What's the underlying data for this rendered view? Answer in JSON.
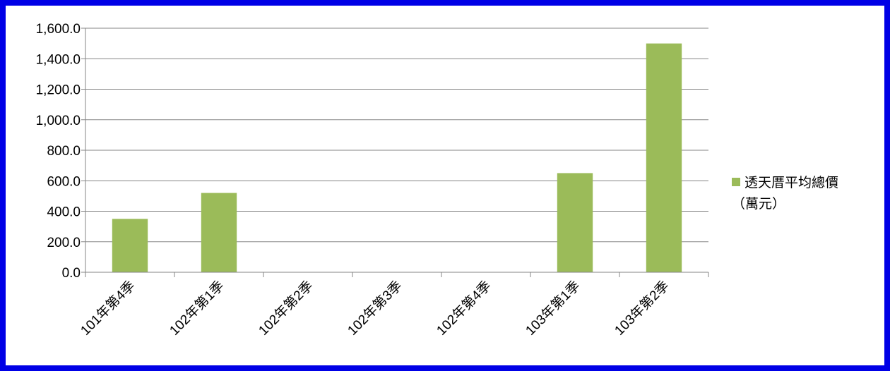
{
  "chart_data": {
    "type": "bar",
    "categories": [
      "101年第4季",
      "102年第1季",
      "102年第2季",
      "102年第3季",
      "102年第4季",
      "103年第1季",
      "103年第2季"
    ],
    "series": [
      {
        "name": "透天厝平均總價（萬元）",
        "values": [
          350,
          520,
          null,
          null,
          null,
          650,
          1500
        ]
      }
    ],
    "ylim": [
      0,
      1600
    ],
    "yticks": [
      "0.0",
      "200.0",
      "400.0",
      "600.0",
      "800.0",
      "1,000.0",
      "1,200.0",
      "1,400.0",
      "1,600.0"
    ],
    "grid": true,
    "legend_position": "right",
    "bar_color": "#9bbb59",
    "gridline_color": "#868686",
    "border_color": "#0000e6"
  },
  "legend": {
    "line1": "透天厝平均總價",
    "line2": "（萬元）"
  }
}
